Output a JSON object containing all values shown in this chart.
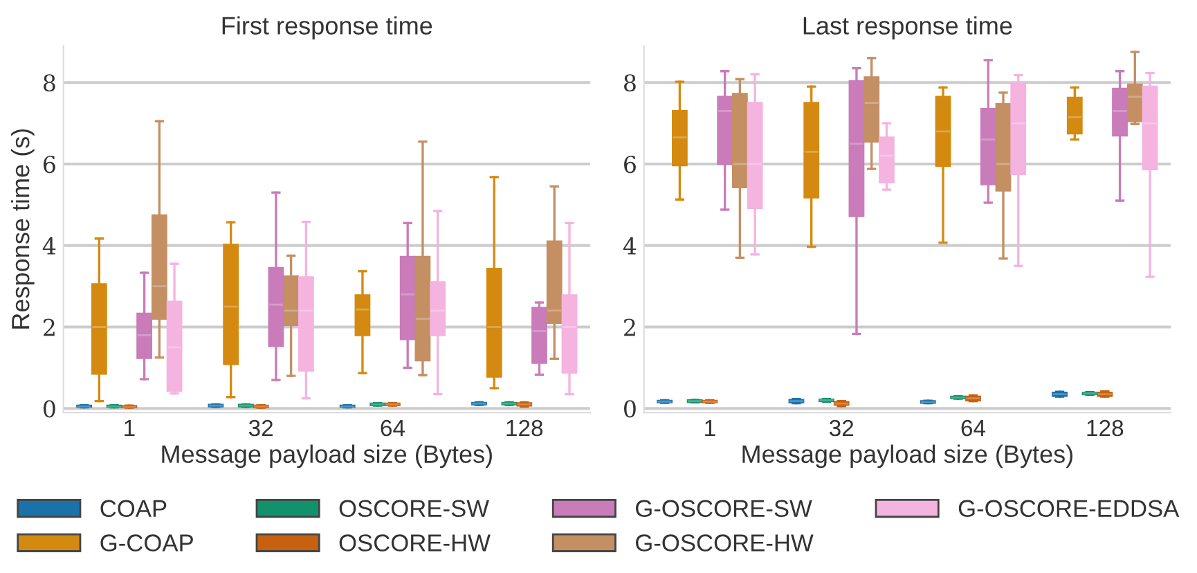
{
  "chart_data": [
    {
      "type": "box",
      "title": "First response time",
      "xlabel": "Message payload size (Bytes)",
      "ylabel": "Response time (s)",
      "categories": [
        "1",
        "32",
        "64",
        "128"
      ],
      "ylim": [
        -0.1,
        8.9
      ],
      "yticks": [
        0,
        2,
        4,
        6,
        8
      ],
      "grid": "y",
      "legend": "bottom",
      "series": [
        {
          "name": "COAP",
          "color": "#1a72a8",
          "boxes": [
            {
              "low": 0.03,
              "q1": 0.04,
              "median": 0.05,
              "q3": 0.07,
              "high": 0.08
            },
            {
              "low": 0.04,
              "q1": 0.05,
              "median": 0.07,
              "q3": 0.09,
              "high": 0.1
            },
            {
              "low": 0.03,
              "q1": 0.04,
              "median": 0.05,
              "q3": 0.07,
              "high": 0.08
            },
            {
              "low": 0.09,
              "q1": 0.1,
              "median": 0.12,
              "q3": 0.14,
              "high": 0.15
            }
          ]
        },
        {
          "name": "G-COAP",
          "color": "#d48a10",
          "boxes": [
            {
              "low": 0.18,
              "q1": 0.85,
              "median": 2.0,
              "q3": 3.05,
              "high": 4.17
            },
            {
              "low": 0.28,
              "q1": 1.09,
              "median": 2.5,
              "q3": 4.02,
              "high": 4.57
            },
            {
              "low": 0.87,
              "q1": 1.8,
              "median": 2.43,
              "q3": 2.78,
              "high": 3.37
            },
            {
              "low": 0.5,
              "q1": 0.78,
              "median": 2.0,
              "q3": 3.43,
              "high": 5.68
            }
          ]
        },
        {
          "name": "OSCORE-SW",
          "color": "#13916c",
          "boxes": [
            {
              "low": 0.03,
              "q1": 0.04,
              "median": 0.05,
              "q3": 0.07,
              "high": 0.08
            },
            {
              "low": 0.04,
              "q1": 0.05,
              "median": 0.07,
              "q3": 0.09,
              "high": 0.1
            },
            {
              "low": 0.07,
              "q1": 0.08,
              "median": 0.1,
              "q3": 0.12,
              "high": 0.13
            },
            {
              "low": 0.09,
              "q1": 0.1,
              "median": 0.12,
              "q3": 0.14,
              "high": 0.15
            }
          ]
        },
        {
          "name": "OSCORE-HW",
          "color": "#c8610f",
          "boxes": [
            {
              "low": 0.02,
              "q1": 0.03,
              "median": 0.04,
              "q3": 0.06,
              "high": 0.07
            },
            {
              "low": 0.02,
              "q1": 0.03,
              "median": 0.05,
              "q3": 0.07,
              "high": 0.08
            },
            {
              "low": 0.07,
              "q1": 0.08,
              "median": 0.1,
              "q3": 0.12,
              "high": 0.13
            },
            {
              "low": 0.05,
              "q1": 0.07,
              "median": 0.1,
              "q3": 0.13,
              "high": 0.15
            }
          ]
        },
        {
          "name": "G-OSCORE-SW",
          "color": "#c97bba",
          "boxes": [
            {
              "low": 0.72,
              "q1": 1.24,
              "median": 1.8,
              "q3": 2.33,
              "high": 3.33
            },
            {
              "low": 0.7,
              "q1": 1.53,
              "median": 2.55,
              "q3": 3.45,
              "high": 5.3
            },
            {
              "low": 1.0,
              "q1": 1.7,
              "median": 2.8,
              "q3": 3.72,
              "high": 4.55
            },
            {
              "low": 0.83,
              "q1": 1.12,
              "median": 1.9,
              "q3": 2.47,
              "high": 2.6
            }
          ]
        },
        {
          "name": "G-OSCORE-HW",
          "color": "#c48f63",
          "boxes": [
            {
              "low": 1.25,
              "q1": 2.2,
              "median": 3.0,
              "q3": 4.74,
              "high": 7.05
            },
            {
              "low": 0.8,
              "q1": 2.05,
              "median": 2.4,
              "q3": 3.24,
              "high": 3.75
            },
            {
              "low": 0.82,
              "q1": 1.18,
              "median": 2.2,
              "q3": 3.72,
              "high": 6.55
            },
            {
              "low": 1.22,
              "q1": 2.1,
              "median": 2.4,
              "q3": 4.1,
              "high": 5.45
            }
          ]
        },
        {
          "name": "G-OSCORE-EDDSA",
          "color": "#f5b3e0",
          "boxes": [
            {
              "low": 0.37,
              "q1": 0.43,
              "median": 1.5,
              "q3": 2.62,
              "high": 3.55
            },
            {
              "low": 0.25,
              "q1": 0.93,
              "median": 2.4,
              "q3": 3.22,
              "high": 4.58
            },
            {
              "low": 0.35,
              "q1": 1.8,
              "median": 2.4,
              "q3": 3.1,
              "high": 4.85
            },
            {
              "low": 0.35,
              "q1": 0.88,
              "median": 2.0,
              "q3": 2.78,
              "high": 4.55
            }
          ]
        }
      ]
    },
    {
      "type": "box",
      "title": "Last response time",
      "xlabel": "Message payload size (Bytes)",
      "categories": [
        "1",
        "32",
        "64",
        "128"
      ],
      "ylim": [
        -0.1,
        8.9
      ],
      "yticks": [
        0,
        2,
        4,
        6,
        8
      ],
      "grid": "y",
      "series": [
        {
          "color": "#1a72a8",
          "boxes": [
            {
              "low": 0.14,
              "q1": 0.15,
              "median": 0.17,
              "q3": 0.19,
              "high": 0.2
            },
            {
              "low": 0.13,
              "q1": 0.15,
              "median": 0.18,
              "q3": 0.21,
              "high": 0.23
            },
            {
              "low": 0.13,
              "q1": 0.14,
              "median": 0.16,
              "q3": 0.18,
              "high": 0.19
            },
            {
              "low": 0.29,
              "q1": 0.31,
              "median": 0.35,
              "q3": 0.39,
              "high": 0.41
            }
          ]
        },
        {
          "color": "#d48a10",
          "boxes": [
            {
              "low": 5.13,
              "q1": 5.97,
              "median": 6.65,
              "q3": 7.3,
              "high": 8.02
            },
            {
              "low": 3.97,
              "q1": 5.18,
              "median": 6.3,
              "q3": 7.5,
              "high": 7.9
            },
            {
              "low": 4.07,
              "q1": 5.95,
              "median": 6.8,
              "q3": 7.65,
              "high": 7.88
            },
            {
              "low": 6.6,
              "q1": 6.75,
              "median": 7.15,
              "q3": 7.63,
              "high": 7.88
            }
          ]
        },
        {
          "color": "#13916c",
          "boxes": [
            {
              "low": 0.15,
              "q1": 0.16,
              "median": 0.18,
              "q3": 0.2,
              "high": 0.21
            },
            {
              "low": 0.17,
              "q1": 0.18,
              "median": 0.2,
              "q3": 0.22,
              "high": 0.23
            },
            {
              "low": 0.24,
              "q1": 0.25,
              "median": 0.27,
              "q3": 0.29,
              "high": 0.3
            },
            {
              "low": 0.34,
              "q1": 0.35,
              "median": 0.37,
              "q3": 0.39,
              "high": 0.4
            }
          ]
        },
        {
          "color": "#c8610f",
          "boxes": [
            {
              "low": 0.14,
              "q1": 0.15,
              "median": 0.17,
              "q3": 0.19,
              "high": 0.2
            },
            {
              "low": 0.06,
              "q1": 0.09,
              "median": 0.12,
              "q3": 0.16,
              "high": 0.18
            },
            {
              "low": 0.18,
              "q1": 0.2,
              "median": 0.25,
              "q3": 0.29,
              "high": 0.32
            },
            {
              "low": 0.29,
              "q1": 0.31,
              "median": 0.35,
              "q3": 0.39,
              "high": 0.42
            }
          ]
        },
        {
          "color": "#c97bba",
          "boxes": [
            {
              "low": 4.88,
              "q1": 6.0,
              "median": 7.3,
              "q3": 7.65,
              "high": 8.28
            },
            {
              "low": 1.83,
              "q1": 4.72,
              "median": 6.5,
              "q3": 8.03,
              "high": 8.35
            },
            {
              "low": 5.05,
              "q1": 5.5,
              "median": 6.6,
              "q3": 7.35,
              "high": 8.55
            },
            {
              "low": 5.1,
              "q1": 6.7,
              "median": 7.3,
              "q3": 7.85,
              "high": 8.28
            }
          ]
        },
        {
          "color": "#c48f63",
          "boxes": [
            {
              "low": 3.7,
              "q1": 5.43,
              "median": 6.0,
              "q3": 7.72,
              "high": 8.08
            },
            {
              "low": 5.88,
              "q1": 6.55,
              "median": 7.5,
              "q3": 8.13,
              "high": 8.6
            },
            {
              "low": 3.68,
              "q1": 5.35,
              "median": 6.0,
              "q3": 7.47,
              "high": 7.75
            },
            {
              "low": 6.98,
              "q1": 7.05,
              "median": 7.65,
              "q3": 7.95,
              "high": 8.75
            }
          ]
        },
        {
          "color": "#f5b3e0",
          "boxes": [
            {
              "low": 3.78,
              "q1": 4.92,
              "median": 6.0,
              "q3": 7.5,
              "high": 8.2
            },
            {
              "low": 5.37,
              "q1": 5.55,
              "median": 6.2,
              "q3": 6.65,
              "high": 7.0
            },
            {
              "low": 3.5,
              "q1": 5.75,
              "median": 7.0,
              "q3": 7.98,
              "high": 8.18
            },
            {
              "low": 3.23,
              "q1": 5.87,
              "median": 7.0,
              "q3": 7.9,
              "high": 8.23
            }
          ]
        }
      ]
    }
  ]
}
